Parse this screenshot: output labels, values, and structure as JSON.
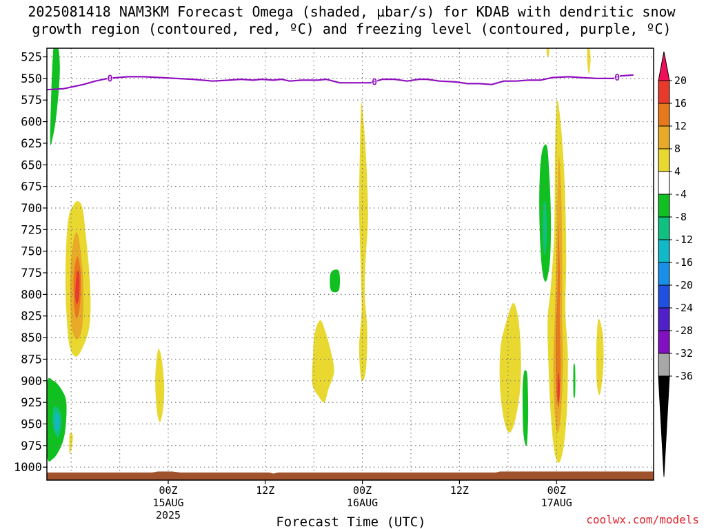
{
  "chart_data": {
    "type": "heatmap",
    "title_line1": "2025081418 NAM3KM Forecast Omega (shaded, µbar/s) for KDAB with dendritic snow",
    "title_line2": "growth region (contoured, red, ºC) and freezing level (contoured, purple, ºC)",
    "xlabel": "Forecast Time (UTC)",
    "credit": "coolwx.com/models",
    "y_axis": {
      "reversed": true,
      "ylim": [
        1015,
        515
      ],
      "ticks": [
        525,
        550,
        575,
        600,
        625,
        650,
        675,
        700,
        725,
        750,
        775,
        800,
        825,
        850,
        875,
        900,
        925,
        950,
        975,
        1000
      ]
    },
    "x_axis": {
      "xlim_hours": [
        -15,
        60
      ],
      "ticks": [
        {
          "hour": 0,
          "label": "00Z",
          "sub": "15AUG",
          "sub2": "2025"
        },
        {
          "hour": 12,
          "label": "12Z",
          "sub": "",
          "sub2": ""
        },
        {
          "hour": 24,
          "label": "00Z",
          "sub": "16AUG",
          "sub2": ""
        },
        {
          "hour": 36,
          "label": "12Z",
          "sub": "",
          "sub2": ""
        },
        {
          "hour": 48,
          "label": "00Z",
          "sub": "17AUG",
          "sub2": ""
        }
      ],
      "minor_grid_hours": [
        -12,
        -6,
        6,
        18,
        30,
        42,
        54
      ]
    },
    "grid": "dotted",
    "colorbar": {
      "labels": [
        "20",
        "16",
        "12",
        "8",
        "4",
        "-4",
        "-8",
        "-12",
        "-16",
        "-20",
        "-24",
        "-28",
        "-32",
        "-36"
      ],
      "colors": [
        "#f0105a",
        "#e83a2c",
        "#e8781c",
        "#e8aa28",
        "#e8d830",
        "#ffffff",
        "#10c020",
        "#10c080",
        "#10b8c8",
        "#1890e8",
        "#2050e0",
        "#5020c8",
        "#8010c0",
        "#a8a8a8",
        "#000000"
      ]
    },
    "freezing_level": {
      "color": "#9010c0",
      "label": "0",
      "label_hours": [
        -7.2,
        25.5,
        55.5
      ],
      "points": [
        [
          -15,
          563
        ],
        [
          -13,
          562
        ],
        [
          -11.5,
          559
        ],
        [
          -10.5,
          557
        ],
        [
          -9,
          553
        ],
        [
          -7.5,
          550
        ],
        [
          -5,
          548
        ],
        [
          -3,
          548
        ],
        [
          -1,
          549
        ],
        [
          1,
          550
        ],
        [
          3,
          551
        ],
        [
          5.5,
          553
        ],
        [
          7.5,
          552
        ],
        [
          9,
          551
        ],
        [
          10.5,
          552
        ],
        [
          11.5,
          551
        ],
        [
          13,
          552
        ],
        [
          14,
          551
        ],
        [
          15,
          553
        ],
        [
          16.5,
          552
        ],
        [
          18.5,
          552
        ],
        [
          19.5,
          551
        ],
        [
          21.2,
          555
        ],
        [
          23,
          555
        ],
        [
          25,
          555
        ],
        [
          26.5,
          551
        ],
        [
          28,
          551
        ],
        [
          29.5,
          553
        ],
        [
          31,
          551
        ],
        [
          32,
          551
        ],
        [
          33.5,
          553
        ],
        [
          35.5,
          554
        ],
        [
          37,
          556
        ],
        [
          38.5,
          556
        ],
        [
          40,
          557
        ],
        [
          41.5,
          553
        ],
        [
          43,
          553
        ],
        [
          44.5,
          552
        ],
        [
          46,
          552
        ],
        [
          47.5,
          549
        ],
        [
          49.5,
          548
        ],
        [
          51,
          549
        ],
        [
          53,
          550
        ],
        [
          55,
          550
        ],
        [
          56,
          547
        ],
        [
          57.5,
          546
        ]
      ]
    },
    "ground": {
      "color": "#a0522d",
      "from_pressure": 1005,
      "note": "terrain below surface"
    },
    "omega_regions": [
      {
        "level": -8,
        "color": "#10c020",
        "poly": [
          [
            -14.2,
            515
          ],
          [
            -13.6,
            515
          ],
          [
            -13.4,
            535
          ],
          [
            -13.5,
            560
          ],
          [
            -13.8,
            590
          ],
          [
            -14.2,
            615
          ],
          [
            -14.6,
            620
          ]
        ]
      },
      {
        "level": 4,
        "color": "#e8d830",
        "poly": [
          [
            -11.8,
            698
          ],
          [
            -11.2,
            692
          ],
          [
            -10.6,
            700
          ],
          [
            -10.2,
            730
          ],
          [
            -9.8,
            770
          ],
          [
            -9.6,
            810
          ],
          [
            -9.8,
            840
          ],
          [
            -10.6,
            862
          ],
          [
            -11.4,
            872
          ],
          [
            -12.2,
            860
          ],
          [
            -12.6,
            820
          ],
          [
            -12.7,
            780
          ],
          [
            -12.6,
            740
          ],
          [
            -12.3,
            710
          ]
        ]
      },
      {
        "level": 8,
        "color": "#e8aa28",
        "poly": [
          [
            -11.6,
            733
          ],
          [
            -11.2,
            730
          ],
          [
            -10.8,
            752
          ],
          [
            -10.5,
            790
          ],
          [
            -10.6,
            835
          ],
          [
            -11.2,
            852
          ],
          [
            -11.9,
            840
          ],
          [
            -12.1,
            800
          ],
          [
            -12.0,
            760
          ]
        ]
      },
      {
        "level": 12,
        "color": "#e8781c",
        "poly": [
          [
            -11.4,
            760
          ],
          [
            -11.1,
            758
          ],
          [
            -10.8,
            780
          ],
          [
            -10.9,
            812
          ],
          [
            -11.3,
            828
          ],
          [
            -11.6,
            815
          ],
          [
            -11.7,
            782
          ]
        ]
      },
      {
        "level": 16,
        "color": "#e83a2c",
        "poly": [
          [
            -11.3,
            775
          ],
          [
            -11.0,
            776
          ],
          [
            -11.0,
            800
          ],
          [
            -11.3,
            812
          ],
          [
            -11.5,
            800
          ]
        ]
      },
      {
        "level": -8,
        "color": "#10c020",
        "poly": [
          [
            -15,
            905
          ],
          [
            -14.2,
            900
          ],
          [
            -13.2,
            910
          ],
          [
            -12.6,
            925
          ],
          [
            -12.7,
            955
          ],
          [
            -13.2,
            975
          ],
          [
            -14.2,
            990
          ],
          [
            -15,
            985
          ]
        ]
      },
      {
        "level": -12,
        "color": "#10c080",
        "poly": [
          [
            -14.1,
            930
          ],
          [
            -13.4,
            935
          ],
          [
            -13.2,
            950
          ],
          [
            -13.6,
            965
          ],
          [
            -14.1,
            958
          ],
          [
            -14.3,
            945
          ]
        ]
      },
      {
        "level": -16,
        "color": "#10b8c8",
        "poly": [
          [
            -13.9,
            938
          ],
          [
            -13.5,
            942
          ],
          [
            -13.5,
            955
          ],
          [
            -13.9,
            958
          ],
          [
            -14.0,
            948
          ]
        ]
      },
      {
        "level": 4,
        "color": "#e8d830",
        "poly": [
          [
            -12.2,
            962
          ],
          [
            -11.8,
            963
          ],
          [
            -11.9,
            975
          ],
          [
            -12.2,
            985
          ]
        ]
      },
      {
        "level": 4,
        "color": "#e8d830",
        "poly": [
          [
            -1.2,
            863
          ],
          [
            -0.8,
            875
          ],
          [
            -0.5,
            905
          ],
          [
            -0.6,
            930
          ],
          [
            -1.0,
            948
          ],
          [
            -1.4,
            935
          ],
          [
            -1.6,
            905
          ],
          [
            -1.5,
            880
          ]
        ]
      },
      {
        "level": 4,
        "color": "#e8d830",
        "poly": [
          [
            18.8,
            830
          ],
          [
            19.5,
            845
          ],
          [
            20.2,
            870
          ],
          [
            20.5,
            890
          ],
          [
            19.8,
            910
          ],
          [
            19.3,
            925
          ],
          [
            18.6,
            918
          ],
          [
            17.8,
            903
          ],
          [
            17.9,
            870
          ],
          [
            18.1,
            845
          ]
        ]
      },
      {
        "level": -8,
        "color": "#10c020",
        "poly": [
          [
            20.1,
            775
          ],
          [
            21.1,
            773
          ],
          [
            21.1,
            795
          ],
          [
            20.1,
            795
          ]
        ]
      },
      {
        "level": 4,
        "color": "#e8d830",
        "poly": [
          [
            23.9,
            578
          ],
          [
            24.2,
            605
          ],
          [
            24.5,
            650
          ],
          [
            24.7,
            710
          ],
          [
            24.4,
            760
          ],
          [
            24.3,
            800
          ],
          [
            24.6,
            840
          ],
          [
            24.5,
            880
          ],
          [
            24.2,
            898
          ],
          [
            23.8,
            895
          ],
          [
            23.6,
            860
          ],
          [
            23.9,
            820
          ],
          [
            23.8,
            770
          ],
          [
            23.6,
            700
          ],
          [
            23.7,
            630
          ],
          [
            23.8,
            590
          ]
        ]
      },
      {
        "level": 4,
        "color": "#e8d830",
        "poly": [
          [
            46.8,
            515
          ],
          [
            47.1,
            515
          ],
          [
            47.0,
            525
          ],
          [
            46.8,
            522
          ]
        ]
      },
      {
        "level": 4,
        "color": "#e8d830",
        "poly": [
          [
            51.8,
            515
          ],
          [
            52.1,
            515
          ],
          [
            52.2,
            530
          ],
          [
            52.0,
            545
          ],
          [
            51.8,
            532
          ]
        ]
      },
      {
        "level": 4,
        "color": "#e8d830",
        "poly": [
          [
            42.0,
            825
          ],
          [
            42.7,
            810
          ],
          [
            43.3,
            830
          ],
          [
            43.6,
            870
          ],
          [
            43.5,
            910
          ],
          [
            42.9,
            945
          ],
          [
            42.2,
            960
          ],
          [
            41.5,
            945
          ],
          [
            41.0,
            905
          ],
          [
            41.1,
            860
          ]
        ]
      },
      {
        "level": -8,
        "color": "#10c020",
        "poly": [
          [
            44.1,
            888
          ],
          [
            44.4,
            895
          ],
          [
            44.5,
            940
          ],
          [
            44.3,
            975
          ],
          [
            43.9,
            960
          ],
          [
            43.8,
            915
          ],
          [
            43.9,
            895
          ]
        ]
      },
      {
        "level": -8,
        "color": "#10c020",
        "poly": [
          [
            46.2,
            635
          ],
          [
            46.8,
            628
          ],
          [
            47.1,
            660
          ],
          [
            47.3,
            710
          ],
          [
            47.2,
            760
          ],
          [
            46.7,
            785
          ],
          [
            46.2,
            770
          ],
          [
            45.9,
            720
          ],
          [
            45.9,
            670
          ]
        ]
      },
      {
        "level": -12,
        "color": "#10c080",
        "poly": [
          [
            46.4,
            695
          ],
          [
            46.7,
            698
          ],
          [
            46.8,
            735
          ],
          [
            46.5,
            755
          ],
          [
            46.3,
            730
          ]
        ]
      },
      {
        "level": 4,
        "color": "#e8d830",
        "poly": [
          [
            48.1,
            575
          ],
          [
            48.5,
            600
          ],
          [
            48.9,
            650
          ],
          [
            49.1,
            700
          ],
          [
            49.2,
            760
          ],
          [
            49.1,
            820
          ],
          [
            49.4,
            870
          ],
          [
            49.3,
            930
          ],
          [
            48.9,
            975
          ],
          [
            48.3,
            995
          ],
          [
            47.7,
            980
          ],
          [
            47.3,
            940
          ],
          [
            47.0,
            880
          ],
          [
            46.9,
            830
          ],
          [
            47.3,
            790
          ],
          [
            47.7,
            730
          ],
          [
            47.8,
            650
          ],
          [
            47.9,
            600
          ]
        ]
      },
      {
        "level": 8,
        "color": "#e8aa28",
        "poly": [
          [
            48.3,
            640
          ],
          [
            48.6,
            690
          ],
          [
            48.7,
            760
          ],
          [
            48.7,
            830
          ],
          [
            48.8,
            880
          ],
          [
            48.6,
            930
          ],
          [
            48.2,
            960
          ],
          [
            47.8,
            940
          ],
          [
            47.6,
            880
          ],
          [
            47.8,
            820
          ],
          [
            48.0,
            750
          ],
          [
            48.1,
            690
          ]
        ]
      },
      {
        "level": 12,
        "color": "#e8781c",
        "poly": [
          [
            48.2,
            720
          ],
          [
            48.4,
            770
          ],
          [
            48.4,
            830
          ],
          [
            48.5,
            890
          ],
          [
            48.3,
            930
          ],
          [
            48.0,
            915
          ],
          [
            47.9,
            860
          ],
          [
            48.1,
            800
          ]
        ]
      },
      {
        "level": 16,
        "color": "#e83a2c",
        "poly": [
          [
            48.2,
            890
          ],
          [
            48.4,
            905
          ],
          [
            48.3,
            925
          ],
          [
            48.1,
            918
          ]
        ]
      },
      {
        "level": -8,
        "color": "#10c020",
        "poly": [
          [
            50.1,
            883
          ],
          [
            50.3,
            885
          ],
          [
            50.3,
            915
          ],
          [
            50.1,
            917
          ]
        ]
      },
      {
        "level": 4,
        "color": "#e8d830",
        "poly": [
          [
            53.2,
            828
          ],
          [
            53.7,
            845
          ],
          [
            53.8,
            880
          ],
          [
            53.4,
            915
          ],
          [
            53.0,
            905
          ],
          [
            52.9,
            870
          ],
          [
            53.0,
            845
          ]
        ]
      }
    ]
  }
}
